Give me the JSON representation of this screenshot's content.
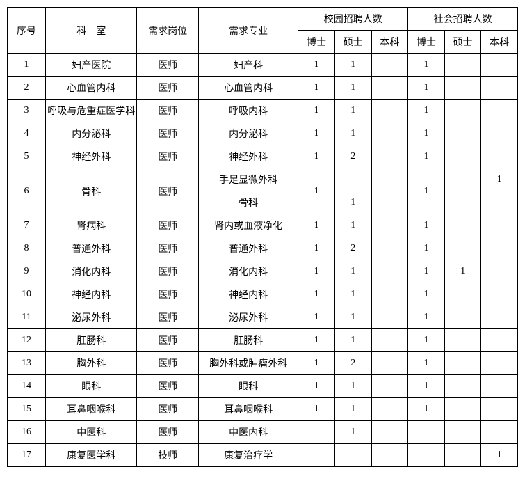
{
  "headers": {
    "seq": "序号",
    "dept": "科　室",
    "post": "需求岗位",
    "major": "需求专业",
    "campus_group": "校园招聘人数",
    "social_group": "社会招聘人数",
    "phd": "博士",
    "master": "硕士",
    "bachelor": "本科"
  },
  "rows": [
    {
      "seq": "1",
      "dept": "妇产医院",
      "post": "医师",
      "major": "妇产科",
      "c_phd": "1",
      "c_ms": "1",
      "c_bs": "",
      "s_phd": "1",
      "s_ms": "",
      "s_bs": ""
    },
    {
      "seq": "2",
      "dept": "心血管内科",
      "post": "医师",
      "major": "心血管内科",
      "c_phd": "1",
      "c_ms": "1",
      "c_bs": "",
      "s_phd": "1",
      "s_ms": "",
      "s_bs": ""
    },
    {
      "seq": "3",
      "dept": "呼吸与危重症医学科",
      "post": "医师",
      "major": "呼吸内科",
      "c_phd": "1",
      "c_ms": "1",
      "c_bs": "",
      "s_phd": "1",
      "s_ms": "",
      "s_bs": ""
    },
    {
      "seq": "4",
      "dept": "内分泌科",
      "post": "医师",
      "major": "内分泌科",
      "c_phd": "1",
      "c_ms": "1",
      "c_bs": "",
      "s_phd": "1",
      "s_ms": "",
      "s_bs": ""
    },
    {
      "seq": "5",
      "dept": "神经外科",
      "post": "医师",
      "major": "神经外科",
      "c_phd": "1",
      "c_ms": "2",
      "c_bs": "",
      "s_phd": "1",
      "s_ms": "",
      "s_bs": ""
    },
    {
      "seq": "6",
      "dept": "骨科",
      "post": "医师",
      "major_a": "手足显微外科",
      "major_b": "骨科",
      "c_phd": "1",
      "c_ms_a": "",
      "c_ms_b": "1",
      "c_bs_a": "",
      "c_bs_b": "",
      "s_phd": "1",
      "s_ms_a": "",
      "s_ms_b": "",
      "s_bs_a": "1",
      "s_bs_b": ""
    },
    {
      "seq": "7",
      "dept": "肾病科",
      "post": "医师",
      "major": "肾内或血液净化",
      "c_phd": "1",
      "c_ms": "1",
      "c_bs": "",
      "s_phd": "1",
      "s_ms": "",
      "s_bs": ""
    },
    {
      "seq": "8",
      "dept": "普通外科",
      "post": "医师",
      "major": "普通外科",
      "c_phd": "1",
      "c_ms": "2",
      "c_bs": "",
      "s_phd": "1",
      "s_ms": "",
      "s_bs": ""
    },
    {
      "seq": "9",
      "dept": "消化内科",
      "post": "医师",
      "major": "消化内科",
      "c_phd": "1",
      "c_ms": "1",
      "c_bs": "",
      "s_phd": "1",
      "s_ms": "1",
      "s_bs": ""
    },
    {
      "seq": "10",
      "dept": "神经内科",
      "post": "医师",
      "major": "神经内科",
      "c_phd": "1",
      "c_ms": "1",
      "c_bs": "",
      "s_phd": "1",
      "s_ms": "",
      "s_bs": ""
    },
    {
      "seq": "11",
      "dept": "泌尿外科",
      "post": "医师",
      "major": "泌尿外科",
      "c_phd": "1",
      "c_ms": "1",
      "c_bs": "",
      "s_phd": "1",
      "s_ms": "",
      "s_bs": ""
    },
    {
      "seq": "12",
      "dept": "肛肠科",
      "post": "医师",
      "major": "肛肠科",
      "c_phd": "1",
      "c_ms": "1",
      "c_bs": "",
      "s_phd": "1",
      "s_ms": "",
      "s_bs": ""
    },
    {
      "seq": "13",
      "dept": "胸外科",
      "post": "医师",
      "major": "胸外科或肿瘤外科",
      "c_phd": "1",
      "c_ms": "2",
      "c_bs": "",
      "s_phd": "1",
      "s_ms": "",
      "s_bs": ""
    },
    {
      "seq": "14",
      "dept": "眼科",
      "post": "医师",
      "major": "眼科",
      "c_phd": "1",
      "c_ms": "1",
      "c_bs": "",
      "s_phd": "1",
      "s_ms": "",
      "s_bs": ""
    },
    {
      "seq": "15",
      "dept": "耳鼻咽喉科",
      "post": "医师",
      "major": "耳鼻咽喉科",
      "c_phd": "1",
      "c_ms": "1",
      "c_bs": "",
      "s_phd": "1",
      "s_ms": "",
      "s_bs": ""
    },
    {
      "seq": "16",
      "dept": "中医科",
      "post": "医师",
      "major": "中医内科",
      "c_phd": "",
      "c_ms": "1",
      "c_bs": "",
      "s_phd": "",
      "s_ms": "",
      "s_bs": ""
    },
    {
      "seq": "17",
      "dept": "康复医学科",
      "post": "技师",
      "major": "康复治疗学",
      "c_phd": "",
      "c_ms": "",
      "c_bs": "",
      "s_phd": "",
      "s_ms": "",
      "s_bs": "1"
    }
  ]
}
